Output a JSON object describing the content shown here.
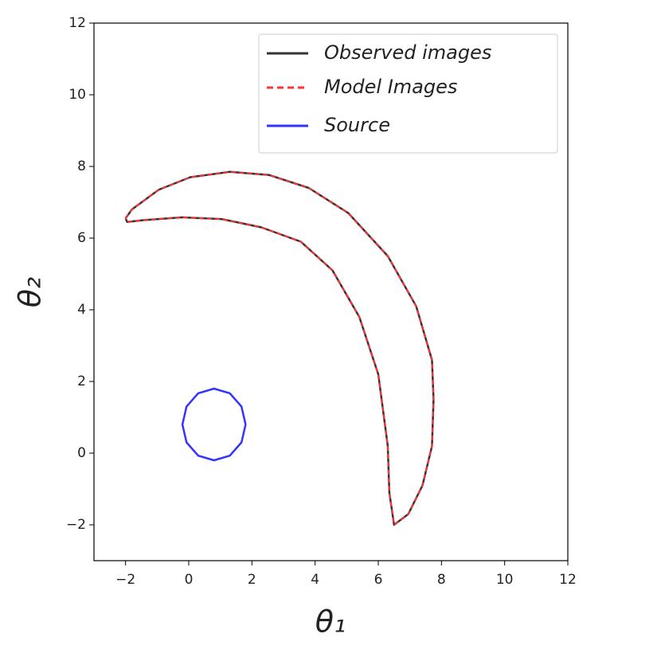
{
  "chart_data": {
    "type": "line",
    "xlabel": "θ₁",
    "ylabel": "θ₂",
    "xlim": [
      -3,
      12
    ],
    "ylim": [
      -3,
      12
    ],
    "xticks": [
      {
        "value": -2,
        "label": "−2"
      },
      0,
      2,
      4,
      6,
      8,
      10,
      12
    ],
    "yticks": [
      {
        "value": -2,
        "label": "−2"
      },
      0,
      2,
      4,
      6,
      8,
      10,
      12
    ],
    "legend": "upper right",
    "series": [
      {
        "name": "Observed images",
        "color": "#333333",
        "style": "solid",
        "x": [
          -2.0,
          -1.8,
          -0.95,
          0.05,
          1.3,
          2.55,
          3.8,
          5.05,
          6.3,
          7.2,
          7.7,
          7.75,
          7.7,
          7.4,
          6.95,
          6.5,
          6.35,
          6.3,
          6.0,
          5.4,
          4.55,
          3.55,
          2.3,
          1.05,
          -0.2,
          -1.45,
          -1.95,
          -2.0
        ],
        "values": [
          6.55,
          6.8,
          7.35,
          7.7,
          7.85,
          7.76,
          7.4,
          6.7,
          5.5,
          4.1,
          2.6,
          1.5,
          0.2,
          -0.9,
          -1.7,
          -2.0,
          -1.1,
          0.2,
          2.2,
          3.8,
          5.1,
          5.9,
          6.3,
          6.53,
          6.58,
          6.5,
          6.45,
          6.55
        ]
      },
      {
        "name": "Model Images",
        "color": "#ff3333",
        "style": "dashed",
        "x": [
          -2.0,
          -1.8,
          -0.95,
          0.05,
          1.3,
          2.55,
          3.8,
          5.05,
          6.3,
          7.2,
          7.7,
          7.75,
          7.7,
          7.4,
          6.95,
          6.5,
          6.35,
          6.3,
          6.0,
          5.4,
          4.55,
          3.55,
          2.3,
          1.05,
          -0.2,
          -1.45,
          -1.95,
          -2.0
        ],
        "values": [
          6.55,
          6.8,
          7.35,
          7.7,
          7.85,
          7.76,
          7.4,
          6.7,
          5.5,
          4.1,
          2.6,
          1.5,
          0.2,
          -0.9,
          -1.7,
          -2.0,
          -1.1,
          0.2,
          2.2,
          3.8,
          5.1,
          5.9,
          6.3,
          6.53,
          6.58,
          6.5,
          6.45,
          6.55
        ]
      },
      {
        "name": "Source",
        "color": "#3333ff",
        "style": "solid",
        "x": [
          1.8,
          1.67,
          1.3,
          0.8,
          0.3,
          -0.07,
          -0.2,
          -0.07,
          0.3,
          0.8,
          1.3,
          1.67,
          1.8
        ],
        "values": [
          0.8,
          1.3,
          1.67,
          1.8,
          1.67,
          1.3,
          0.8,
          0.3,
          -0.07,
          -0.2,
          -0.07,
          0.3,
          0.8
        ]
      }
    ]
  }
}
